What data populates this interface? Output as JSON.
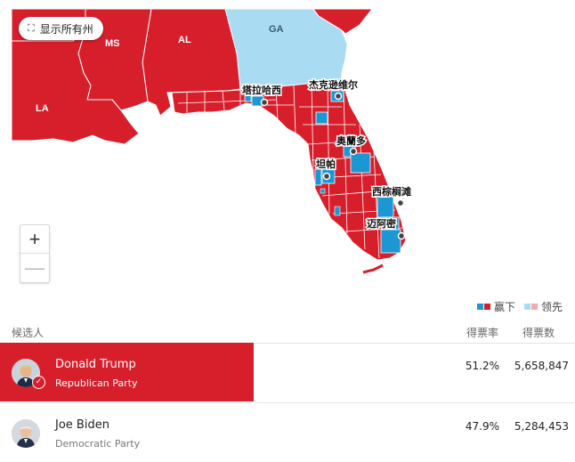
{
  "map": {
    "show_all_label": "显示所有州",
    "states": {
      "ms": "MS",
      "al": "AL",
      "la": "LA",
      "ga": "GA"
    },
    "cities": {
      "tallahassee": "塔拉哈西",
      "jacksonville": "杰克逊维尔",
      "orlando": "奥蘭多",
      "tampa": "坦帕",
      "west_palm_beach": "西棕榈滩",
      "miami": "迈阿密"
    },
    "zoom_in": "+",
    "zoom_out": "—"
  },
  "legend": {
    "won_label": "赢下",
    "leading_label": "领先",
    "colors": {
      "dem_won": "#1b97d4",
      "rep_won": "#d71e2b",
      "dem_lead": "#a9dcf2",
      "rep_lead": "#f2aab0"
    }
  },
  "table": {
    "headers": {
      "candidate": "候选人",
      "pct": "得票率",
      "votes": "得票数"
    },
    "rows": [
      {
        "name": "Donald Trump",
        "party": "Republican Party",
        "pct": "51.2%",
        "votes": "5,658,847",
        "winner": true
      },
      {
        "name": "Joe Biden",
        "party": "Democratic Party",
        "pct": "47.9%",
        "votes": "5,284,453",
        "winner": false
      }
    ]
  }
}
